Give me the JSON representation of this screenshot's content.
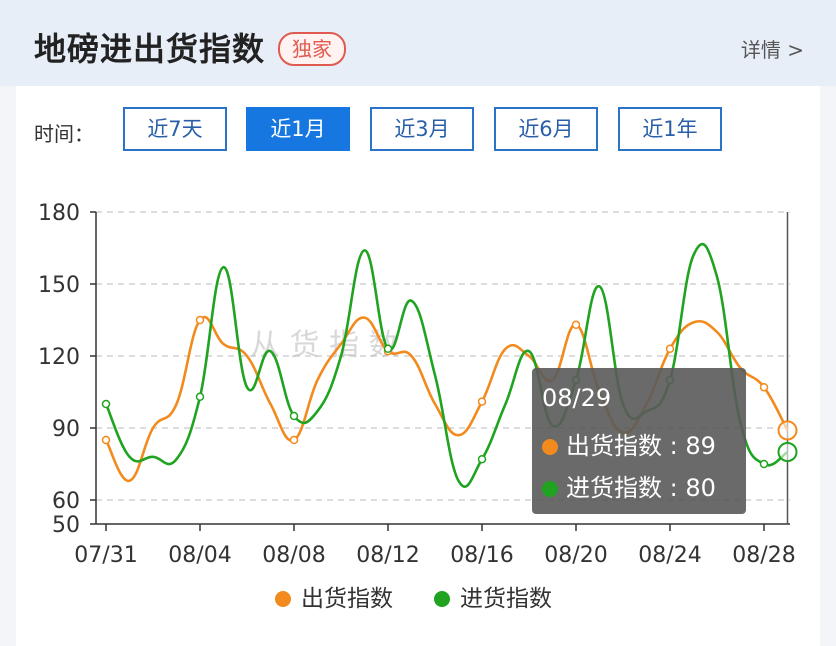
{
  "header": {
    "title": "地磅进出货指数",
    "badge": "独家",
    "detail_link": "详情 >"
  },
  "filters": {
    "label": "时间：",
    "ranges": [
      "近7天",
      "近1月",
      "近3月",
      "近6月",
      "近1年"
    ],
    "active": "近1月"
  },
  "watermark": "从 货 指 数",
  "tooltip": {
    "date": "08/29",
    "rows": [
      {
        "label": "出货指数",
        "value": "89",
        "color": "#f28a1d"
      },
      {
        "label": "进货指数",
        "value": "80",
        "color": "#1fa320"
      }
    ]
  },
  "colors": {
    "outbound": "#f28a1d",
    "inbound": "#1fa320",
    "active_button": "#1677e0",
    "badge": "#e05a4f"
  },
  "chart_data": {
    "type": "line",
    "ylim": [
      50,
      180
    ],
    "yticks": [
      50,
      60,
      90,
      120,
      150,
      180
    ],
    "x": [
      "07/31",
      "08/01",
      "08/02",
      "08/03",
      "08/04",
      "08/05",
      "08/06",
      "08/07",
      "08/08",
      "08/09",
      "08/10",
      "08/11",
      "08/12",
      "08/13",
      "08/14",
      "08/15",
      "08/16",
      "08/17",
      "08/18",
      "08/19",
      "08/20",
      "08/21",
      "08/22",
      "08/23",
      "08/24",
      "08/25",
      "08/26",
      "08/27",
      "08/28",
      "08/29"
    ],
    "xtick_labels": [
      "07/31",
      "08/04",
      "08/08",
      "08/12",
      "08/16",
      "08/20",
      "08/24",
      "08/28"
    ],
    "grid": true,
    "legend_position": "bottom",
    "series": [
      {
        "name": "出货指数",
        "values": [
          85,
          68,
          90,
          100,
          135,
          125,
          120,
          100,
          85,
          110,
          125,
          136,
          122,
          120,
          100,
          87,
          101,
          123,
          120,
          110,
          133,
          105,
          88,
          100,
          123,
          134,
          130,
          115,
          107,
          89
        ]
      },
      {
        "name": "进货指数",
        "values": [
          100,
          78,
          78,
          77,
          103,
          157,
          107,
          122,
          95,
          97,
          120,
          164,
          123,
          143,
          112,
          68,
          77,
          100,
          122,
          91,
          110,
          149,
          100,
          97,
          110,
          162,
          153,
          92,
          75,
          80
        ]
      }
    ]
  }
}
